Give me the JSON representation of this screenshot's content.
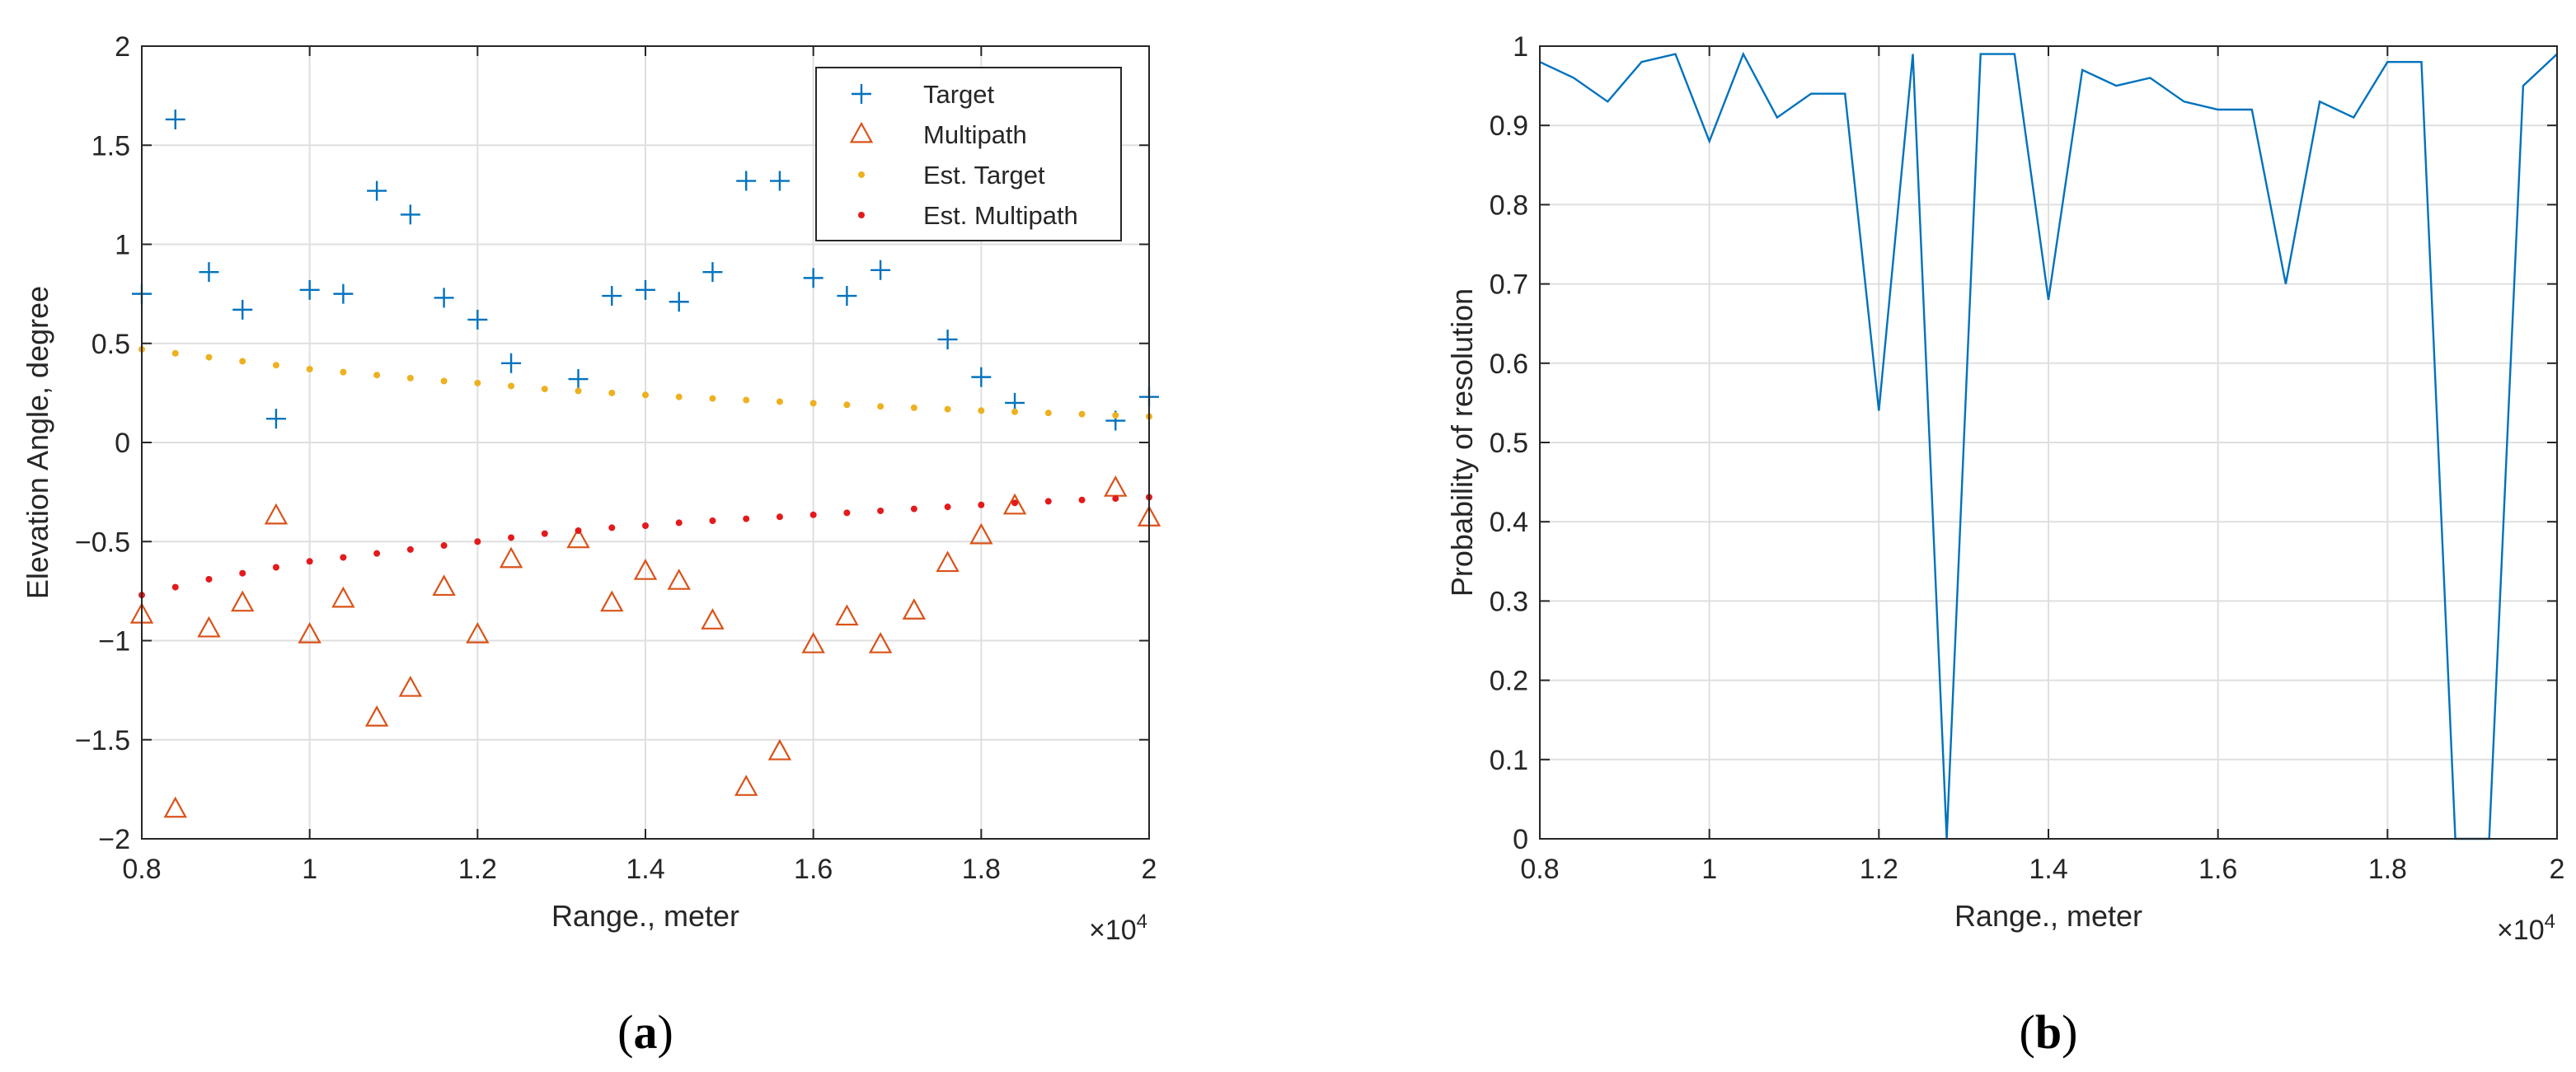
{
  "chart_data": [
    {
      "panel": "(a)",
      "type": "scatter",
      "xlabel": "Range., meter",
      "ylabel": "Elevation Angle, degree",
      "x_exponent_label": "×10^4",
      "xlim": [
        0.8,
        2.0
      ],
      "ylim": [
        -2,
        2
      ],
      "xticks": [
        "0.8",
        "1",
        "1.2",
        "1.4",
        "1.6",
        "1.8",
        "2"
      ],
      "yticks": [
        "-2",
        "-1.5",
        "-1",
        "-0.5",
        "0",
        "0.5",
        "1",
        "1.5",
        "2"
      ],
      "grid": true,
      "legend_position": "top-right",
      "series": [
        {
          "name": "Target",
          "marker": "plus",
          "color": "#0072bd",
          "x": [
            0.8,
            0.84,
            0.88,
            0.92,
            0.96,
            1.0,
            1.04,
            1.08,
            1.12,
            1.16,
            1.2,
            1.24,
            1.32,
            1.36,
            1.4,
            1.44,
            1.48,
            1.52,
            1.56,
            1.6,
            1.64,
            1.68,
            1.76,
            1.8,
            1.84,
            1.96,
            2.0
          ],
          "y": [
            0.75,
            1.63,
            0.86,
            0.67,
            0.12,
            0.77,
            0.75,
            1.27,
            1.15,
            0.73,
            0.62,
            0.4,
            0.32,
            0.74,
            0.77,
            0.71,
            0.86,
            1.32,
            1.32,
            0.83,
            0.74,
            0.87,
            0.52,
            0.33,
            0.2,
            0.11,
            0.23
          ]
        },
        {
          "name": "Multipath",
          "marker": "triangle",
          "color": "#d95319",
          "x": [
            0.8,
            0.84,
            0.88,
            0.92,
            0.96,
            1.0,
            1.04,
            1.08,
            1.12,
            1.16,
            1.2,
            1.24,
            1.32,
            1.36,
            1.4,
            1.44,
            1.48,
            1.52,
            1.56,
            1.6,
            1.64,
            1.68,
            1.72,
            1.76,
            1.8,
            1.84,
            1.96,
            2.0
          ],
          "y": [
            -0.87,
            -1.85,
            -0.94,
            -0.81,
            -0.37,
            -0.97,
            -0.79,
            -1.39,
            -1.24,
            -0.73,
            -0.97,
            -0.59,
            -0.49,
            -0.81,
            -0.65,
            -0.7,
            -0.9,
            -1.74,
            -1.56,
            -1.02,
            -0.88,
            -1.02,
            -0.85,
            -0.61,
            -0.47,
            -0.32,
            -0.23,
            -0.38
          ]
        },
        {
          "name": "Est. Target",
          "marker": "dot",
          "color": "#edb120",
          "x": [
            0.8,
            0.84,
            0.88,
            0.92,
            0.96,
            1.0,
            1.04,
            1.08,
            1.12,
            1.16,
            1.2,
            1.24,
            1.28,
            1.32,
            1.36,
            1.4,
            1.44,
            1.48,
            1.52,
            1.56,
            1.6,
            1.64,
            1.68,
            1.72,
            1.76,
            1.8,
            1.84,
            1.88,
            1.92,
            1.96,
            2.0
          ],
          "y": [
            0.47,
            0.45,
            0.43,
            0.41,
            0.39,
            0.37,
            0.355,
            0.34,
            0.325,
            0.31,
            0.3,
            0.285,
            0.27,
            0.26,
            0.25,
            0.24,
            0.23,
            0.222,
            0.214,
            0.206,
            0.198,
            0.19,
            0.182,
            0.175,
            0.168,
            0.161,
            0.155,
            0.149,
            0.143,
            0.137,
            0.131
          ]
        },
        {
          "name": "Est. Multipath",
          "marker": "dot",
          "color": "#e31a1c",
          "x": [
            0.8,
            0.84,
            0.88,
            0.92,
            0.96,
            1.0,
            1.04,
            1.08,
            1.12,
            1.16,
            1.2,
            1.24,
            1.28,
            1.32,
            1.36,
            1.4,
            1.44,
            1.48,
            1.52,
            1.56,
            1.6,
            1.64,
            1.68,
            1.72,
            1.76,
            1.8,
            1.84,
            1.88,
            1.92,
            1.96,
            2.0
          ],
          "y": [
            -0.77,
            -0.73,
            -0.69,
            -0.66,
            -0.63,
            -0.6,
            -0.58,
            -0.56,
            -0.54,
            -0.52,
            -0.5,
            -0.48,
            -0.46,
            -0.445,
            -0.43,
            -0.42,
            -0.405,
            -0.395,
            -0.385,
            -0.375,
            -0.365,
            -0.355,
            -0.345,
            -0.335,
            -0.325,
            -0.315,
            -0.305,
            -0.297,
            -0.29,
            -0.283,
            -0.276
          ]
        }
      ]
    },
    {
      "panel": "(b)",
      "type": "line",
      "xlabel": "Range., meter",
      "ylabel": "Probability of resolution",
      "x_exponent_label": "×10^4",
      "xlim": [
        0.8,
        2.0
      ],
      "ylim": [
        0,
        1
      ],
      "xticks": [
        "0.8",
        "1",
        "1.2",
        "1.4",
        "1.6",
        "1.8",
        "2"
      ],
      "yticks": [
        "0",
        "0.1",
        "0.2",
        "0.3",
        "0.4",
        "0.5",
        "0.6",
        "0.7",
        "0.8",
        "0.9",
        "1"
      ],
      "grid": true,
      "series": [
        {
          "name": "Probability of resolution",
          "color": "#0072bd",
          "x": [
            0.8,
            0.84,
            0.88,
            0.92,
            0.96,
            1.0,
            1.04,
            1.08,
            1.12,
            1.16,
            1.2,
            1.24,
            1.28,
            1.32,
            1.36,
            1.4,
            1.44,
            1.48,
            1.52,
            1.56,
            1.6,
            1.64,
            1.68,
            1.72,
            1.76,
            1.8,
            1.84,
            1.88,
            1.92,
            1.96,
            2.0
          ],
          "y": [
            0.98,
            0.96,
            0.93,
            0.98,
            0.99,
            0.88,
            0.99,
            0.91,
            0.94,
            0.94,
            0.54,
            0.99,
            0.0,
            0.99,
            0.99,
            0.68,
            0.97,
            0.95,
            0.96,
            0.93,
            0.92,
            0.92,
            0.7,
            0.93,
            0.91,
            0.98,
            0.98,
            0.0,
            0.0,
            0.95,
            0.99
          ]
        }
      ]
    }
  ]
}
